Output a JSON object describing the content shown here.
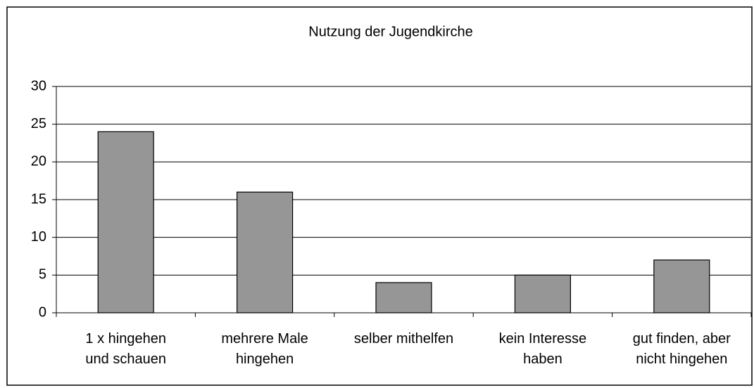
{
  "chart_data": {
    "type": "bar",
    "title": "Nutzung der Jugendkirche",
    "categories": [
      "1 x hingehen\nund schauen",
      "mehrere Male\nhingehen",
      "selber mithelfen",
      "kein Interesse\nhaben",
      "gut finden, aber\nnicht hingehen"
    ],
    "values": [
      24,
      16,
      4,
      5,
      7
    ],
    "color": "#969696",
    "ylim": [
      0,
      30
    ],
    "yticks": [
      0,
      5,
      10,
      15,
      20,
      25,
      30
    ],
    "grid": true
  }
}
